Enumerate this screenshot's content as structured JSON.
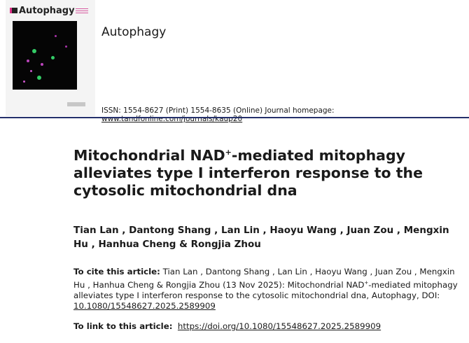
{
  "cover": {
    "journal_logo": "Autophagy"
  },
  "journal_name": "Autophagy",
  "issn": {
    "text": "ISSN: 1554-8627 (Print) 1554-8635 (Online) Journal homepage: ",
    "homepage": "www.tandfonline.com/journals/kaup20"
  },
  "title": {
    "part1": "Mitochondrial NAD",
    "sup": "+",
    "part2": "-mediated mitophagy alleviates type I interferon response to the cytosolic mitochondrial dna"
  },
  "authors": "Tian Lan , Dantong Shang , Lan Lin , Haoyu Wang , Juan Zou , Mengxin Hu , Hanhua Cheng & Rongjia Zhou",
  "cite": {
    "label": "To cite this article:",
    "text1": " Tian Lan , Dantong Shang , Lan Lin , Haoyu Wang , Juan Zou , Mengxin Hu , Hanhua Cheng & Rongjia Zhou (13 Nov 2025): Mitochondrial NAD",
    "sup": "+",
    "text2": "-mediated mitophagy alleviates type I interferon response to the cytosolic mitochondrial dna, Autophagy, DOI: ",
    "doi": "10.1080/15548627.2025.2589909"
  },
  "link": {
    "label": "To link to this article:",
    "url": "https://doi.org/10.1080/15548627.2025.2589909"
  },
  "colors": {
    "rule": "#24306b",
    "cover_accent": "#e0338a"
  }
}
